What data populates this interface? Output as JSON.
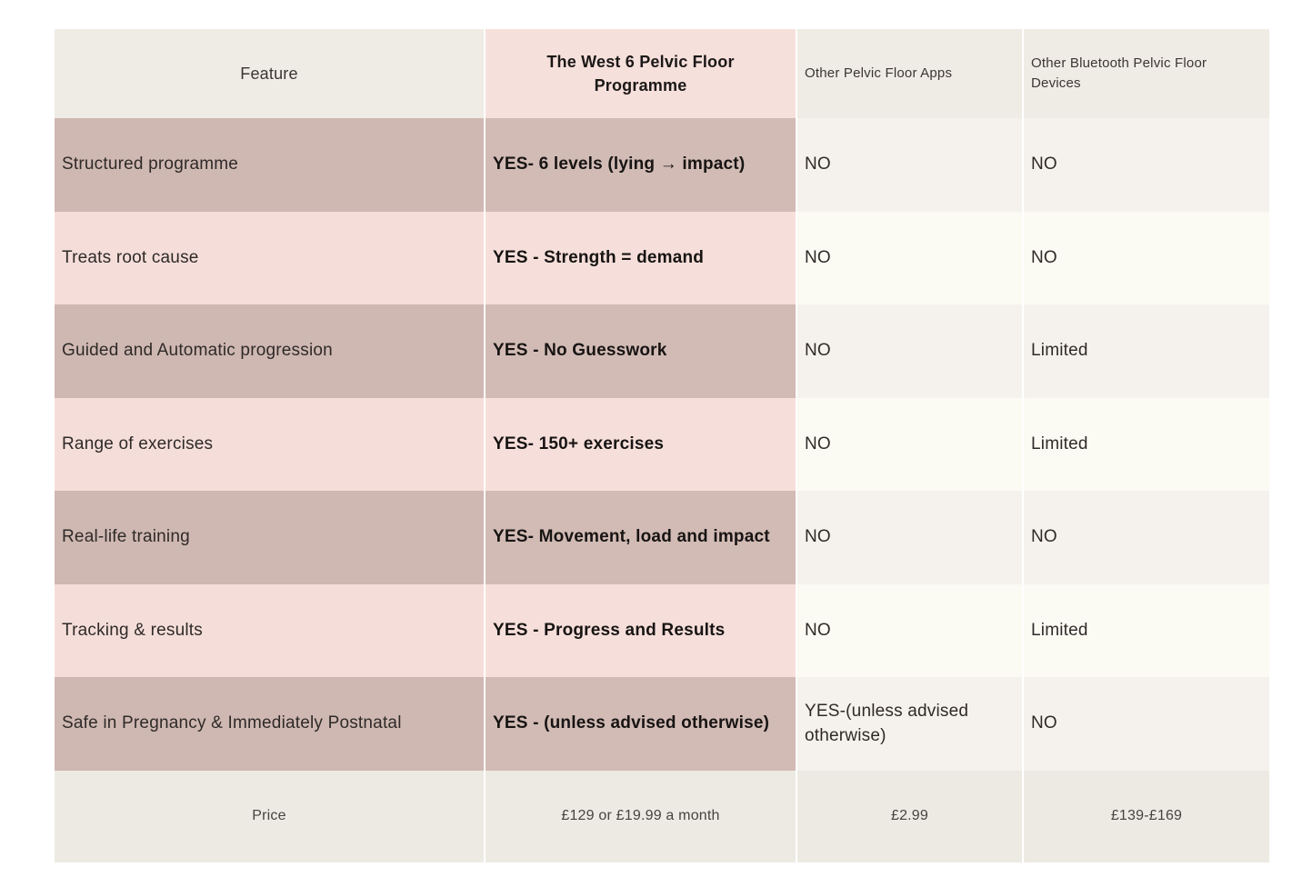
{
  "table": {
    "header": {
      "feature": "Feature",
      "west6": "The West 6 Pelvic Floor Programme",
      "apps": "Other Pelvic Floor Apps",
      "devices": "Other Bluetooth Pelvic Floor Devices"
    },
    "rows": [
      {
        "feature": "Structured programme",
        "west6": "YES- 6 levels (lying → impact)",
        "apps": "NO",
        "devices": "NO"
      },
      {
        "feature": "Treats root cause",
        "west6": "YES - Strength = demand",
        "apps": "NO",
        "devices": "NO"
      },
      {
        "feature": "Guided and Automatic progression",
        "west6": "YES - No Guesswork",
        "apps": "NO",
        "devices": "Limited"
      },
      {
        "feature": "Range of exercises",
        "west6": "YES- 150+ exercises",
        "apps": "NO",
        "devices": "Limited"
      },
      {
        "feature": "Real-life training",
        "west6": "YES- Movement, load and impact",
        "apps": "NO",
        "devices": "NO"
      },
      {
        "feature": "Tracking & results",
        "west6": "YES - Progress and Results",
        "apps": "NO",
        "devices": "Limited"
      },
      {
        "feature": "Safe in Pregnancy & Immediately Postnatal",
        "west6": "YES - (unless advised otherwise)",
        "apps": "YES-(unless advised otherwise)",
        "devices": "NO"
      }
    ],
    "price_row": {
      "feature": "Price",
      "west6": "£129 or £19.99 a month",
      "apps": "£2.99",
      "devices": "£139-£169"
    },
    "colors": {
      "page_background": "#ffffff",
      "header_beige": "#efebe5",
      "header_pink": "#f6e0db",
      "row_mauve": "#cfb8b2",
      "row_pink": "#f5ded9",
      "row_light": "#f5f2ed",
      "row_near_white": "#fbfaf3",
      "price_beige": "#edeae3",
      "text_dark": "#2f2a28",
      "text_bold": "#171413"
    }
  }
}
